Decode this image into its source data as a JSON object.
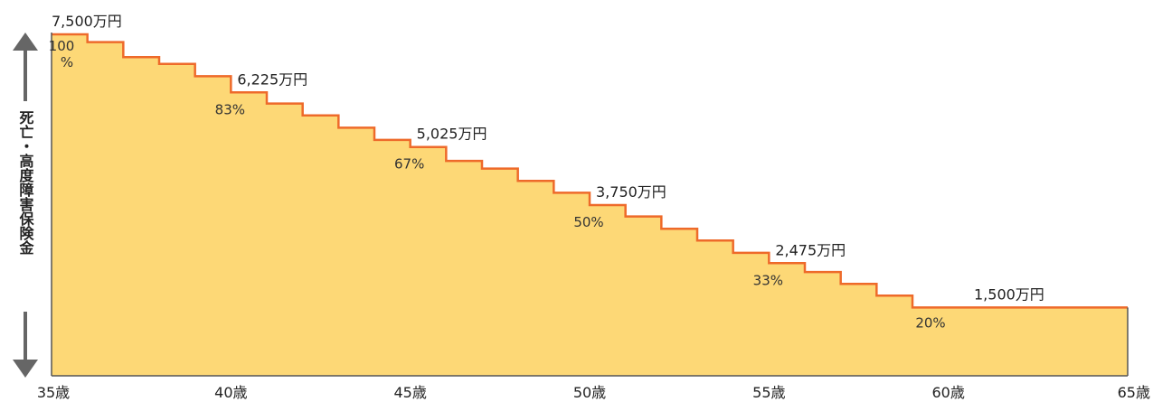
{
  "chart_data": {
    "type": "area",
    "ylabel": "死亡・高度障害保険金",
    "x_ticks": [
      "35歳",
      "40歳",
      "45歳",
      "50歳",
      "55歳",
      "60歳",
      "65歳"
    ],
    "xlim": [
      35,
      65
    ],
    "ylim": [
      0,
      7500
    ],
    "units": "万円",
    "steps": [
      {
        "age": 35,
        "value": 7500
      },
      {
        "age": 36,
        "value": 7330
      },
      {
        "age": 37,
        "value": 7000
      },
      {
        "age": 38,
        "value": 6850
      },
      {
        "age": 39,
        "value": 6580
      },
      {
        "age": 40,
        "value": 6225
      },
      {
        "age": 41,
        "value": 5980
      },
      {
        "age": 42,
        "value": 5720
      },
      {
        "age": 43,
        "value": 5450
      },
      {
        "age": 44,
        "value": 5180
      },
      {
        "age": 45,
        "value": 5025
      },
      {
        "age": 46,
        "value": 4720
      },
      {
        "age": 47,
        "value": 4550
      },
      {
        "age": 48,
        "value": 4280
      },
      {
        "age": 49,
        "value": 4020
      },
      {
        "age": 50,
        "value": 3750
      },
      {
        "age": 51,
        "value": 3500
      },
      {
        "age": 52,
        "value": 3230
      },
      {
        "age": 53,
        "value": 2970
      },
      {
        "age": 54,
        "value": 2700
      },
      {
        "age": 55,
        "value": 2475
      },
      {
        "age": 56,
        "value": 2280
      },
      {
        "age": 57,
        "value": 2020
      },
      {
        "age": 58,
        "value": 1760
      },
      {
        "age": 59,
        "value": 1500
      }
    ],
    "annotations": [
      {
        "age": 35,
        "value": 7500,
        "amount_label": "7,500万円",
        "percent_label": "100\n%"
      },
      {
        "age": 40,
        "value": 6225,
        "amount_label": "6,225万円",
        "percent_label": "83%"
      },
      {
        "age": 45,
        "value": 5025,
        "amount_label": "5,025万円",
        "percent_label": "67%"
      },
      {
        "age": 50,
        "value": 3750,
        "amount_label": "3,750万円",
        "percent_label": "50%"
      },
      {
        "age": 55,
        "value": 2475,
        "amount_label": "2,475万円",
        "percent_label": "33%"
      },
      {
        "age": 59,
        "value": 1500,
        "amount_label": "1,500万円",
        "percent_label": "20%"
      }
    ],
    "colors": {
      "fill": "#FDD876",
      "line": "#EE6A2A",
      "axis": "#555555",
      "arrow": "#666666"
    }
  }
}
